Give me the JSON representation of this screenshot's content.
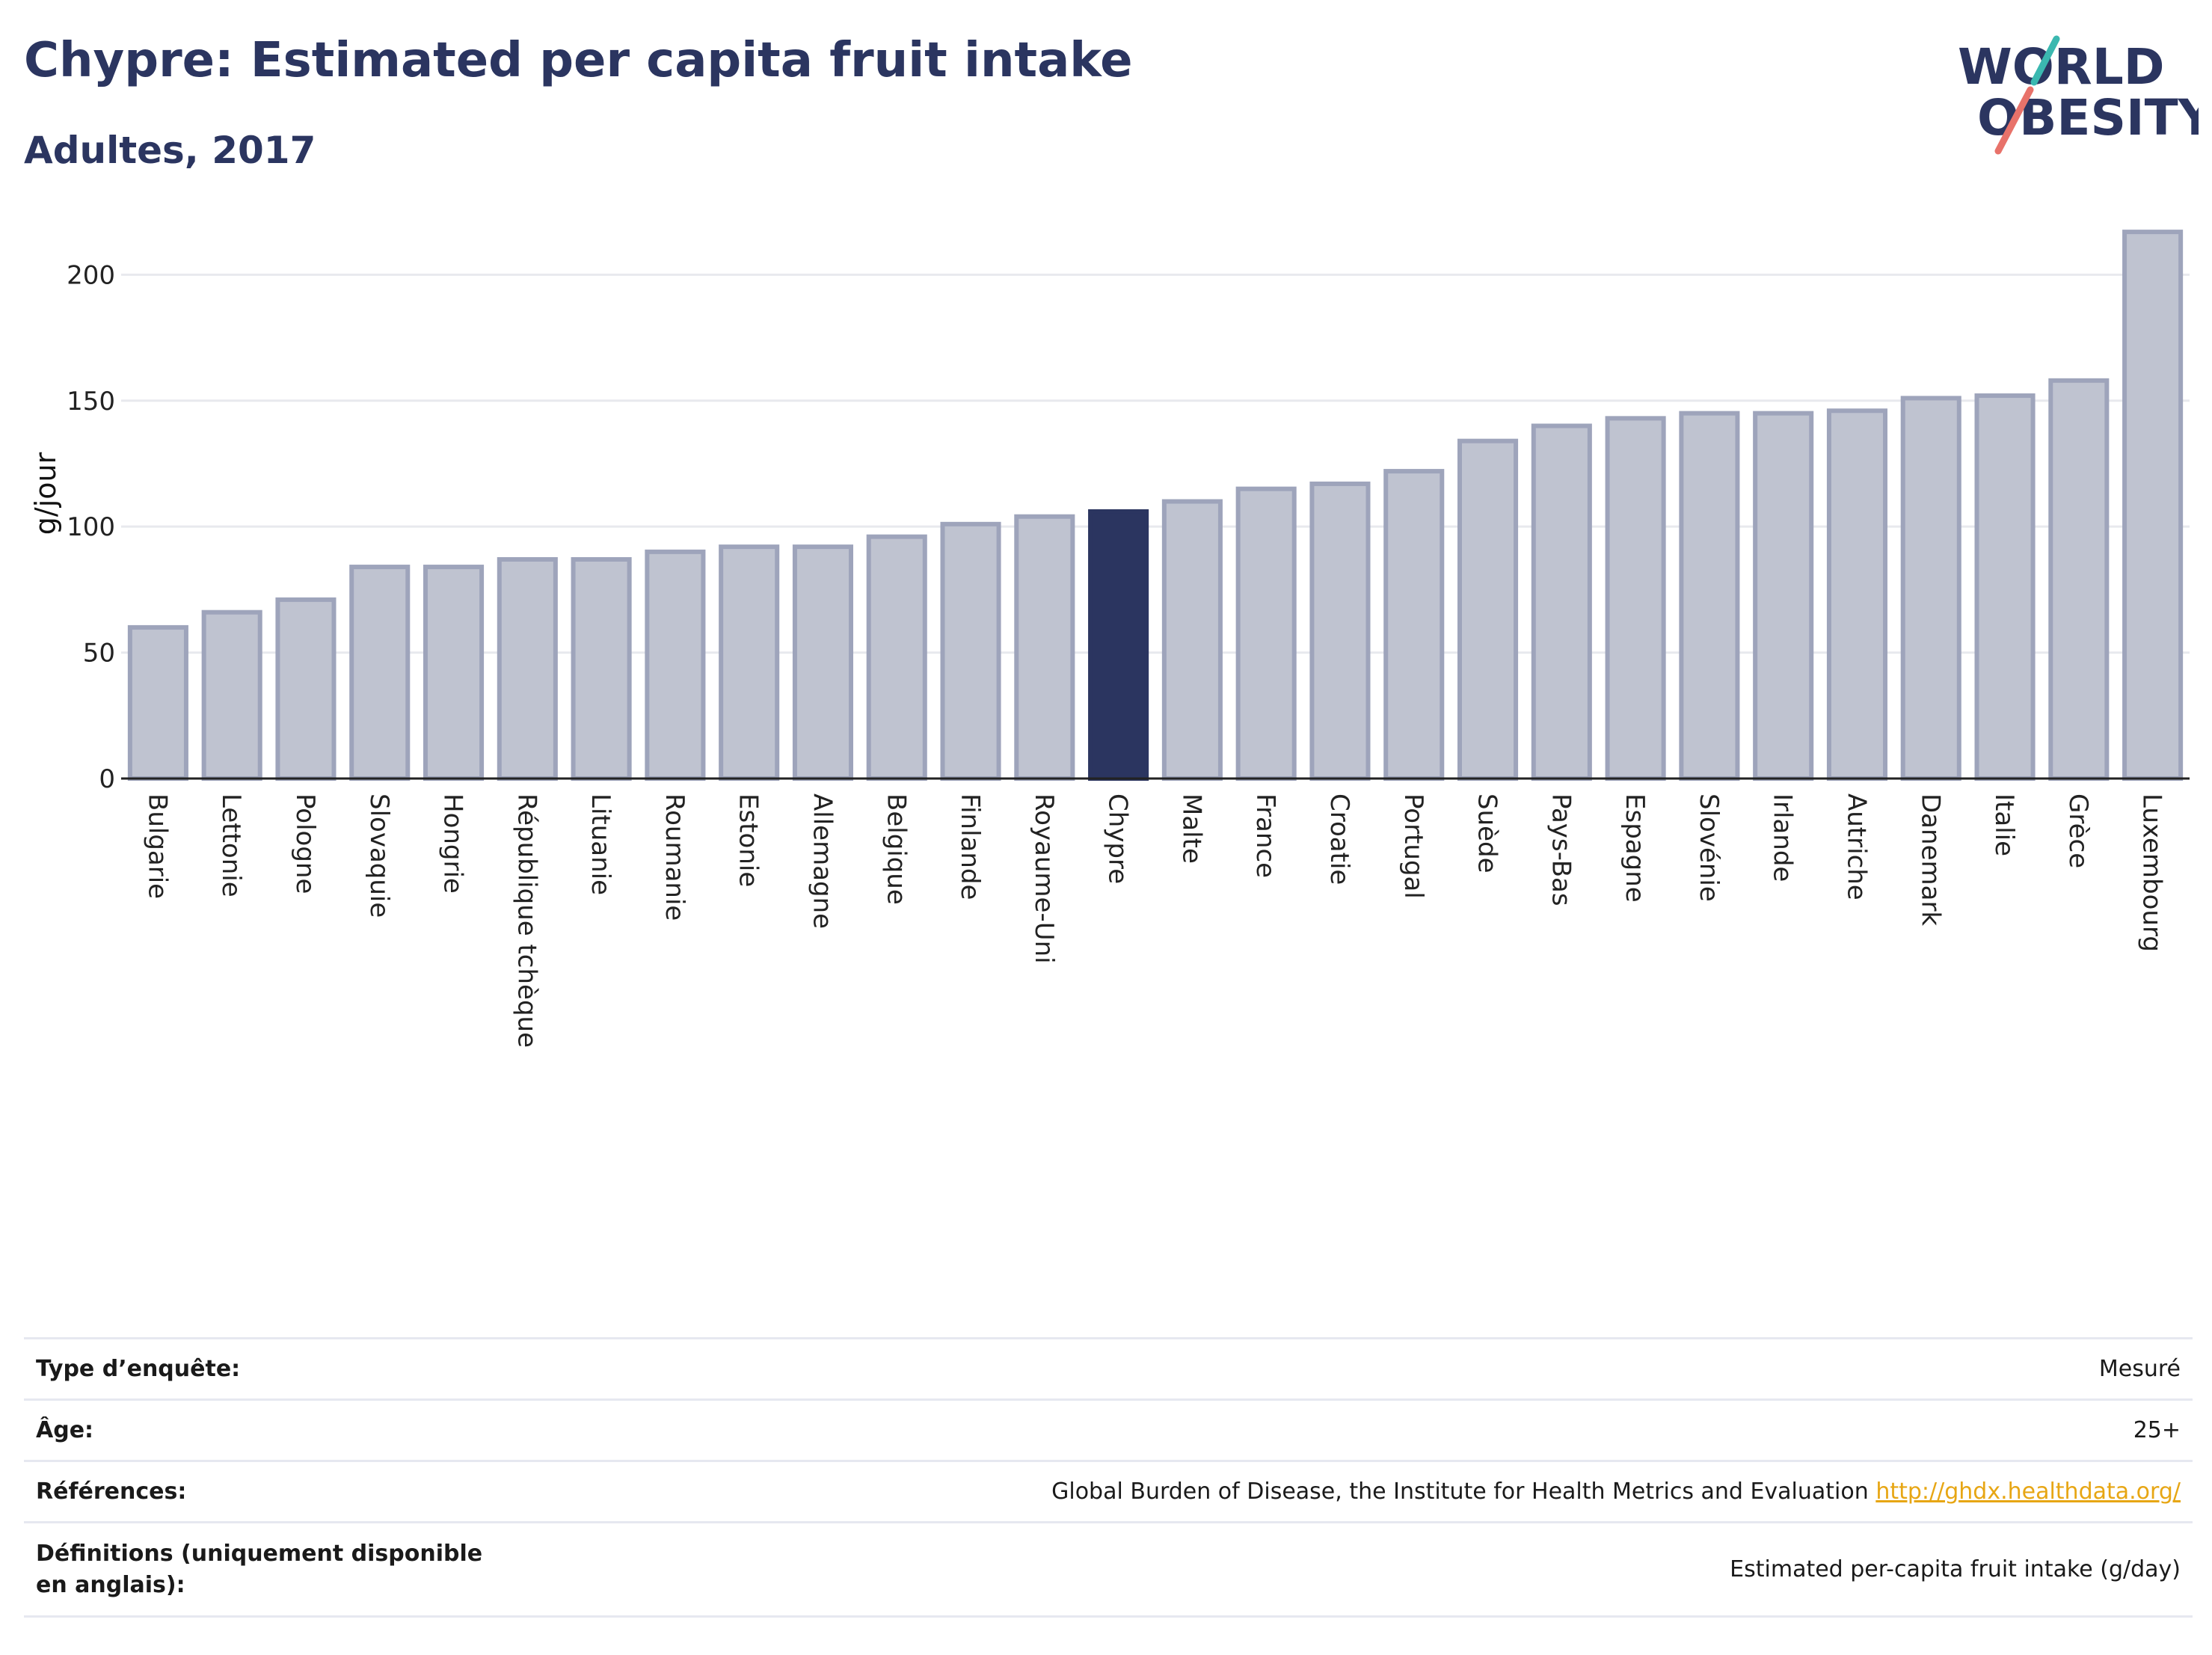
{
  "header": {
    "title": "Chypre: Estimated per capita fruit intake",
    "subtitle": "Adultes, 2017"
  },
  "logo": {
    "line1": "WORLD",
    "line2": "OBESITY"
  },
  "colors": {
    "highlight": "#2b3560",
    "bar": "#bfc3d0",
    "bar_outline": "#9ea4bb",
    "title": "#2b3560",
    "link": "#e7a614"
  },
  "chart_data": {
    "type": "bar",
    "ylabel": "g/jour",
    "ylim": [
      0,
      220
    ],
    "yticks": [
      0,
      50,
      100,
      150,
      200
    ],
    "grid": true,
    "highlight": "Chypre",
    "categories": [
      "Bulgarie",
      "Lettonie",
      "Pologne",
      "Slovaquie",
      "Hongrie",
      "République tchèque",
      "Lituanie",
      "Roumanie",
      "Estonie",
      "Allemagne",
      "Belgique",
      "Finlande",
      "Royaume-Uni",
      "Chypre",
      "Malte",
      "France",
      "Croatie",
      "Portugal",
      "Suède",
      "Pays-Bas",
      "Espagne",
      "Slovénie",
      "Irlande",
      "Autriche",
      "Danemark",
      "Italie",
      "Grèce",
      "Luxembourg"
    ],
    "values": [
      60,
      66,
      71,
      84,
      84,
      87,
      87,
      90,
      92,
      92,
      96,
      101,
      104,
      106,
      110,
      115,
      117,
      122,
      134,
      140,
      143,
      145,
      145,
      146,
      151,
      152,
      158,
      217
    ]
  },
  "info_table": [
    {
      "label": "Type d’enquête:",
      "value": "Mesuré"
    },
    {
      "label": "Âge:",
      "value": "25+"
    },
    {
      "label": "Références:",
      "value": "Global Burden of Disease, the Institute for Health Metrics and Evaluation",
      "link": "http://ghdx.healthdata.org/"
    },
    {
      "label": "Définitions (uniquement disponible en anglais):",
      "value": "Estimated per-capita fruit intake (g/day)"
    }
  ]
}
